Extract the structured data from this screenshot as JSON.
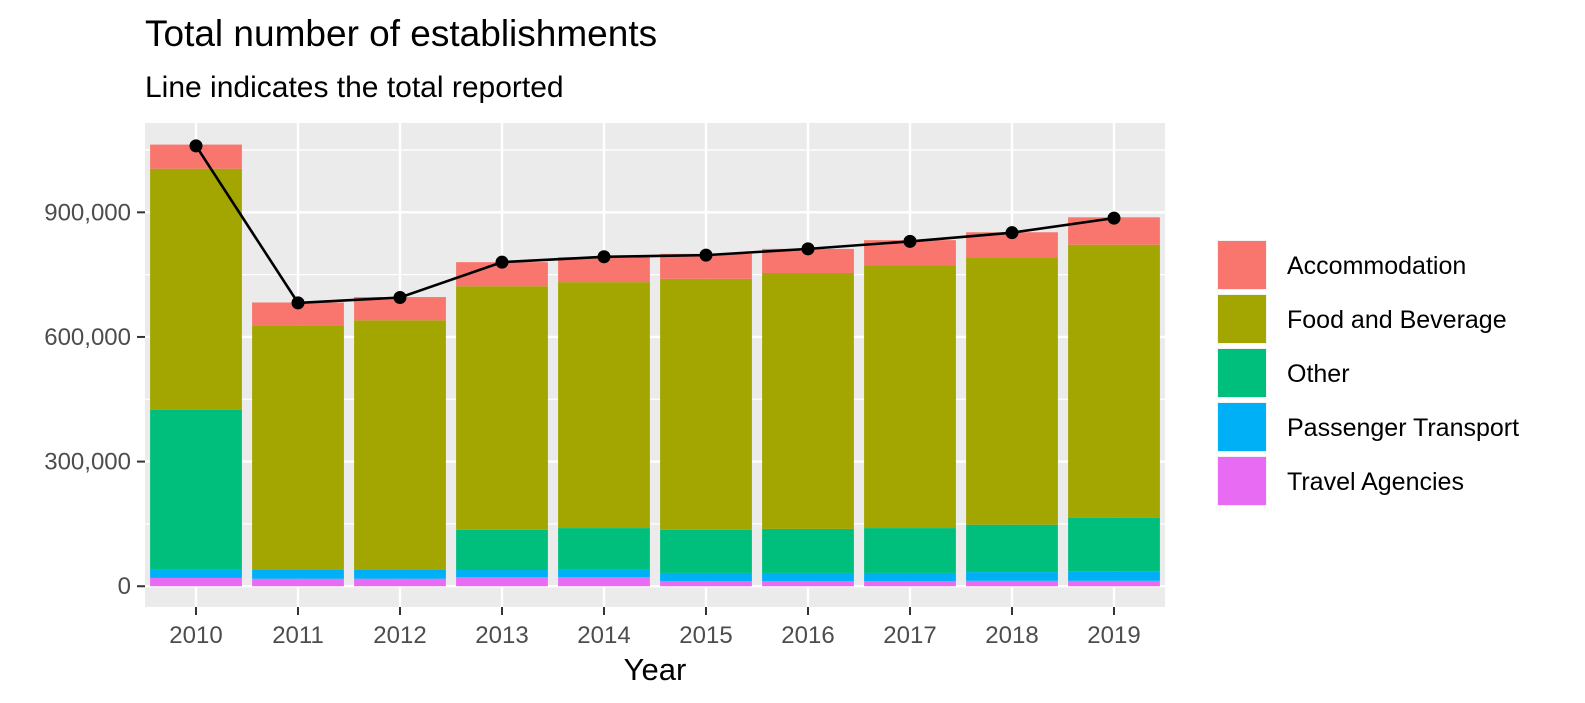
{
  "chart_data": {
    "type": "bar",
    "stacked": true,
    "title": "Total number of establishments",
    "subtitle": "Line indicates the total reported",
    "xlabel": "Year",
    "ylabel": "",
    "ylim": [
      -50000,
      1115000
    ],
    "yticks": [
      0,
      300000,
      600000,
      900000
    ],
    "ytick_labels": [
      "0",
      "300,000",
      "600,000",
      "900,000"
    ],
    "categories": [
      "2010",
      "2011",
      "2012",
      "2013",
      "2014",
      "2015",
      "2016",
      "2017",
      "2018",
      "2019"
    ],
    "series": [
      {
        "name": "Travel Agencies",
        "color": "#E76BF3",
        "values": [
          20000,
          18000,
          18000,
          22000,
          22000,
          12000,
          12000,
          12000,
          13000,
          13000
        ]
      },
      {
        "name": "Passenger Transport",
        "color": "#00B0F6",
        "values": [
          20000,
          22000,
          22000,
          17000,
          18000,
          20000,
          20000,
          20000,
          21000,
          22000
        ]
      },
      {
        "name": "Other",
        "color": "#00BF7D",
        "values": [
          385000,
          0,
          0,
          97000,
          100000,
          104000,
          106000,
          108000,
          114000,
          130000
        ]
      },
      {
        "name": "Food and Beverage",
        "color": "#A3A500",
        "values": [
          580000,
          588000,
          600000,
          586000,
          592000,
          604000,
          616000,
          633000,
          642000,
          657000
        ]
      },
      {
        "name": "Accommodation",
        "color": "#F8766D",
        "values": [
          58000,
          55000,
          56000,
          58000,
          60000,
          60000,
          58000,
          60000,
          62000,
          66000
        ]
      }
    ],
    "line": {
      "name": "Total reported",
      "color": "#000000",
      "values": [
        1060000,
        682000,
        695000,
        780000,
        793000,
        797000,
        812000,
        830000,
        851000,
        886000
      ]
    },
    "legend": {
      "position": "right",
      "items": [
        "Accommodation",
        "Food and Beverage",
        "Other",
        "Passenger Transport",
        "Travel Agencies"
      ],
      "colors": [
        "#F8766D",
        "#A3A500",
        "#00BF7D",
        "#00B0F6",
        "#E76BF3"
      ]
    },
    "grid": true,
    "panel_background": "#EBEBEB"
  }
}
